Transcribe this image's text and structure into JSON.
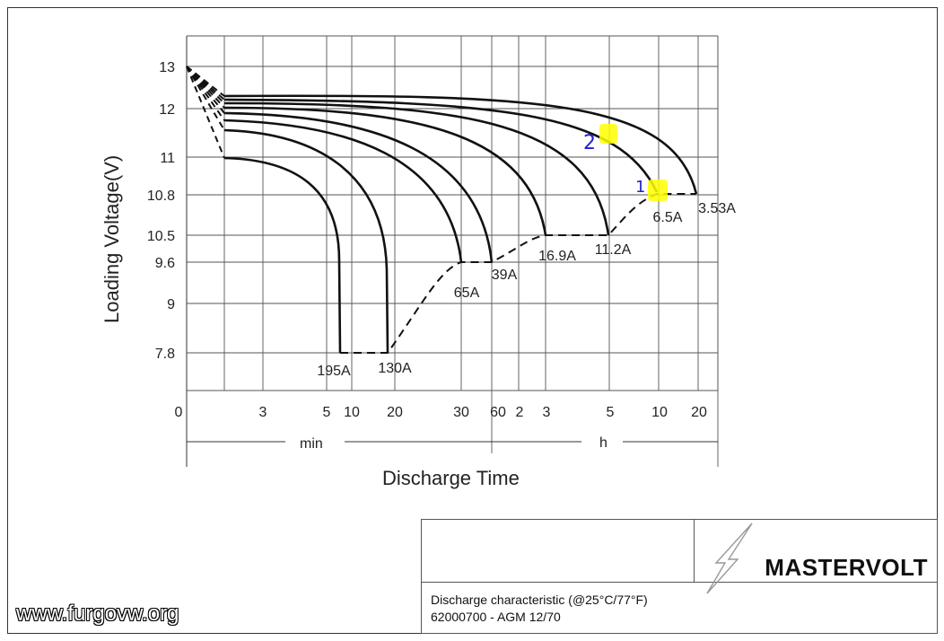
{
  "chart_data": {
    "type": "line",
    "ylabel": "Loading  Voltage(V)",
    "xlabel": "Discharge Time",
    "y_ticks": [
      "13",
      "12",
      "11",
      "10.8",
      "10.5",
      "9.6",
      "9",
      "7.8"
    ],
    "x_ticks": [
      "0",
      "3",
      "5",
      "10",
      "20",
      "30",
      "60",
      "2",
      "3",
      "5",
      "10",
      "20"
    ],
    "x_units": [
      "min",
      "h"
    ],
    "series": [
      {
        "name": "195A",
        "end_time": "8 min",
        "end_voltage": 7.8
      },
      {
        "name": "130A",
        "end_time": "19 min",
        "end_voltage": 7.8
      },
      {
        "name": "65A",
        "end_time": "31 min",
        "end_voltage": 9.6
      },
      {
        "name": "39A",
        "end_time": "60 min",
        "end_voltage": 9.6
      },
      {
        "name": "16.9A",
        "end_time": "3 h",
        "end_voltage": 10.5
      },
      {
        "name": "11.2A",
        "end_time": "5 h",
        "end_voltage": 10.5
      },
      {
        "name": "6.5A",
        "end_time": "10 h",
        "end_voltage": 10.8
      },
      {
        "name": "3.53A",
        "end_time": "20 h",
        "end_voltage": 10.8
      }
    ],
    "annotations": [
      "1",
      "2"
    ],
    "highlight_color": "#ffff00",
    "annotation_color": "#2222cc"
  },
  "title_block": {
    "brand": "MASTERVOLT",
    "line1": "Discharge characteristic (@25°C/77°F)",
    "line2": "62000700 - AGM 12/70"
  },
  "watermark": "www.furgovw.org"
}
